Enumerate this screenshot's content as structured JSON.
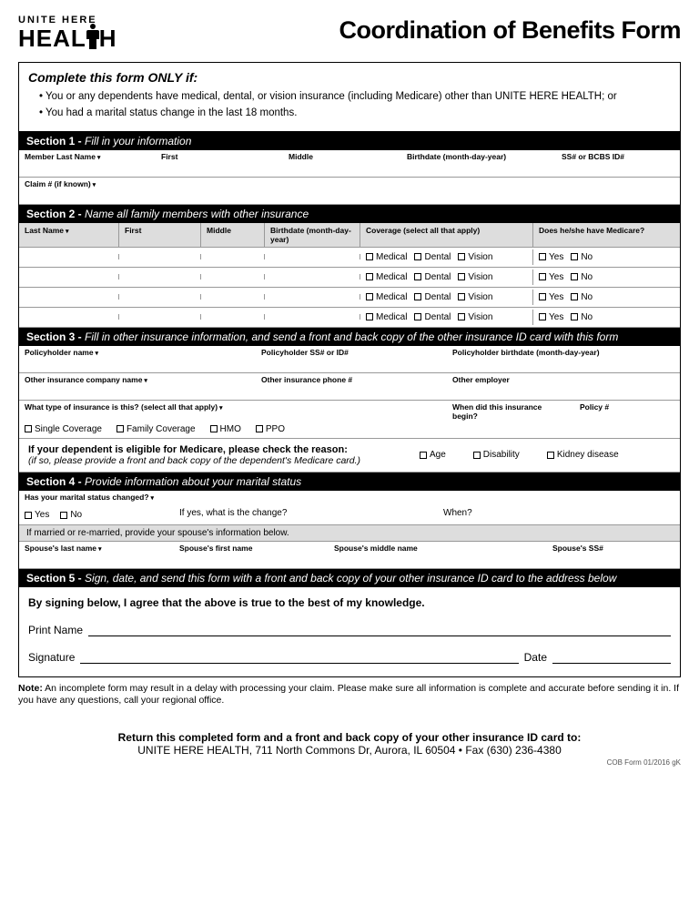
{
  "logo": {
    "top": "UNITE HERE",
    "bottom_pre": "HEAL",
    "bottom_post": "H"
  },
  "title": "Coordination of Benefits Form",
  "complete": {
    "heading": "Complete this form ONLY if:",
    "items": [
      "You or any dependents have medical, dental, or vision insurance (including Medicare) other than UNITE HERE HEALTH; or",
      "You had a marital status change in the last 18 months."
    ]
  },
  "section1": {
    "header_bold": "Section 1 -",
    "header_italic": "Fill in your information",
    "labels": {
      "last": "Member Last Name",
      "first": "First",
      "middle": "Middle",
      "bdate": "Birthdate (month-day-year)",
      "ss": "SS# or BCBS ID#",
      "claim": "Claim # (if known)"
    }
  },
  "section2": {
    "header_bold": "Section 2 -",
    "header_italic": "Name all family members with other insurance",
    "cols": {
      "last": "Last Name",
      "first": "First",
      "middle": "Middle",
      "bdate": "Birthdate (month-day-year)",
      "cov": "Coverage (select all that apply)",
      "med": "Does he/she have Medicare?"
    },
    "chk": {
      "medical": "Medical",
      "dental": "Dental",
      "vision": "Vision",
      "yes": "Yes",
      "no": "No"
    }
  },
  "section3": {
    "header_bold": "Section 3 -",
    "header_italic": "Fill in other insurance information, and send a front and back copy of the other insurance ID card with this form",
    "labels": {
      "pname": "Policyholder name",
      "pss": "Policyholder SS# or ID#",
      "pbdate": "Policyholder birthdate (month-day-year)",
      "oname": "Other insurance company name",
      "ophone": "Other insurance phone #",
      "oemp": "Other employer",
      "itype": "What type of insurance is this? (select all that apply)",
      "ibegin": "When did this insurance begin?",
      "policy": "Policy #"
    },
    "typechk": {
      "single": "Single Coverage",
      "family": "Family Coverage",
      "hmo": "HMO",
      "ppo": "PPO"
    },
    "medicare": {
      "bold": "If your dependent is eligible for Medicare, please check the reason:",
      "italic": "(if so, please provide a front and back copy of the dependent's Medicare card.)",
      "age": "Age",
      "disability": "Disability",
      "kidney": "Kidney disease"
    }
  },
  "section4": {
    "header_bold": "Section 4 -",
    "header_italic": "Provide information about your marital status",
    "labels": {
      "changed": "Has your marital status changed?",
      "ifyes": "If yes, what is the change?",
      "when": "When?",
      "gray": "If married or re-married, provide your spouse's information below.",
      "slast": "Spouse's last name",
      "sfirst": "Spouse's first name",
      "smiddle": "Spouse's middle name",
      "sss": "Spouse's SS#"
    },
    "yn": {
      "yes": "Yes",
      "no": "No"
    }
  },
  "section5": {
    "header_bold": "Section 5 -",
    "header_italic": "Sign, date, and send this form with a front and back copy of your other insurance ID card to the address below",
    "agree": "By signing below, I agree that the above is true to the best of my knowledge.",
    "print": "Print Name",
    "signature": "Signature",
    "date": "Date"
  },
  "note": {
    "bold": "Note:",
    "text": " An incomplete form may result in a delay with processing your claim. Please make sure all information is complete and accurate before sending it in. If you have any questions, call your regional office."
  },
  "return": {
    "bold": "Return this completed form and a front and back copy of your other insurance ID card to:",
    "addr": "UNITE HERE HEALTH, 711 North Commons Dr, Aurora, IL 60504 • Fax (630) 236-4380"
  },
  "formcode": "COB Form 01/2016  gK"
}
